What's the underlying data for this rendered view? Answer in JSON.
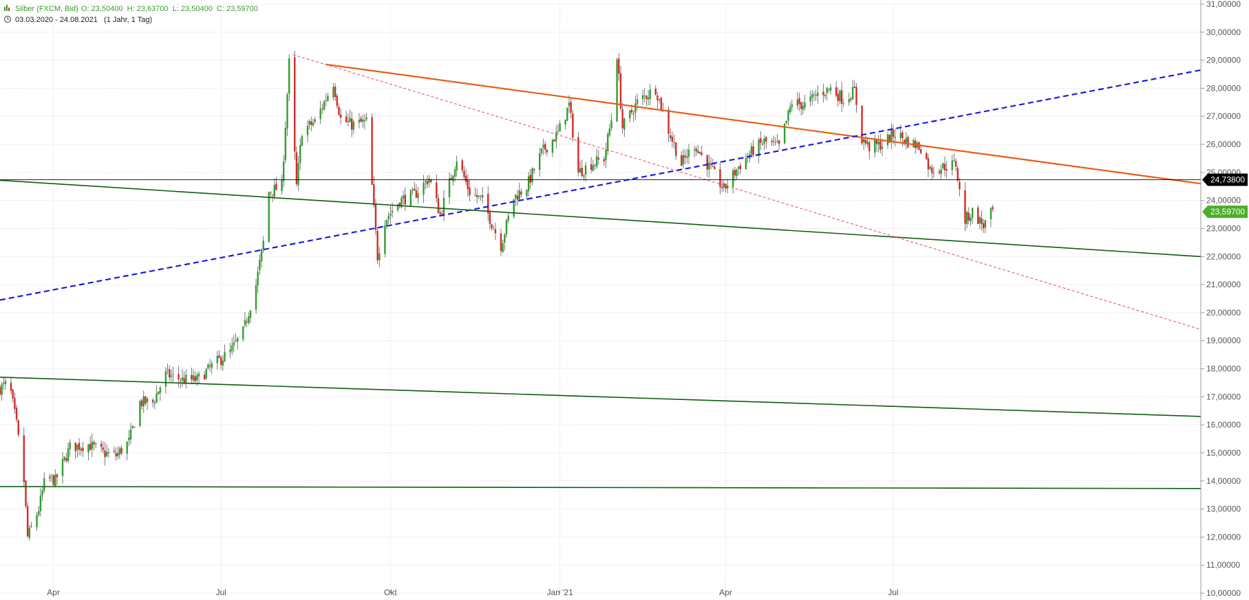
{
  "header": {
    "instrument": "Silber (FXCM, Bid)",
    "ohlc": "O: 23,50400  H: 23,63700  L: 23,50400  C: 23,59700",
    "range": "03.03.2020 - 24.08.2021   (1 Jahr, 1 Tag)",
    "icons": [
      "bar-chart-icon",
      "clock-icon"
    ]
  },
  "colors": {
    "up": "#2e9e2e",
    "down": "#d62828",
    "grid": "#e3e3e3",
    "orange_line": "#e85d12",
    "blue_line": "#1a1ae0",
    "green_line": "#0d5c0d",
    "pink_line": "#f0506e",
    "label_black": "#000000",
    "label_green": "#4caf2a"
  },
  "chart_data": {
    "type": "candlestick",
    "title": "Silber (FXCM, Bid)",
    "ylim": [
      10,
      31
    ],
    "y_ticks": [
      "10,00000",
      "11,00000",
      "12,00000",
      "13,00000",
      "14,00000",
      "15,00000",
      "16,00000",
      "17,00000",
      "18,00000",
      "19,00000",
      "20,00000",
      "21,00000",
      "22,00000",
      "23,00000",
      "24,00000",
      "25,00000",
      "26,00000",
      "27,00000",
      "28,00000",
      "29,00000",
      "30,00000",
      "31,00000"
    ],
    "x_range": [
      "2020-03-03",
      "2021-12-15"
    ],
    "x_ticks": [
      {
        "date": "2020-04-01",
        "label": "Apr"
      },
      {
        "date": "2020-07-01",
        "label": "Jul"
      },
      {
        "date": "2020-10-01",
        "label": "Okt"
      },
      {
        "date": "2021-01-01",
        "label": "Jan '21"
      },
      {
        "date": "2021-04-01",
        "label": "Apr"
      },
      {
        "date": "2021-07-01",
        "label": "Jul"
      }
    ],
    "close_path": [
      [
        "2020-03-03",
        17.3
      ],
      [
        "2020-03-08",
        17.5
      ],
      [
        "2020-03-12",
        16.0
      ],
      [
        "2020-03-16",
        14.0
      ],
      [
        "2020-03-18",
        12.0
      ],
      [
        "2020-03-20",
        12.3
      ],
      [
        "2020-03-24",
        13.0
      ],
      [
        "2020-03-28",
        14.2
      ],
      [
        "2020-04-02",
        14.0
      ],
      [
        "2020-04-10",
        15.2
      ],
      [
        "2020-04-20",
        15.3
      ],
      [
        "2020-04-28",
        15.0
      ],
      [
        "2020-05-05",
        14.9
      ],
      [
        "2020-05-12",
        15.4
      ],
      [
        "2020-05-18",
        16.8
      ],
      [
        "2020-05-25",
        16.8
      ],
      [
        "2020-06-01",
        17.8
      ],
      [
        "2020-06-10",
        17.6
      ],
      [
        "2020-06-18",
        17.6
      ],
      [
        "2020-06-28",
        18.2
      ],
      [
        "2020-07-06",
        18.6
      ],
      [
        "2020-07-13",
        19.3
      ],
      [
        "2020-07-20",
        21.0
      ],
      [
        "2020-07-24",
        22.5
      ],
      [
        "2020-07-27",
        24.3
      ],
      [
        "2020-08-03",
        24.5
      ],
      [
        "2020-08-07",
        28.9
      ],
      [
        "2020-08-11",
        24.5
      ],
      [
        "2020-08-14",
        26.5
      ],
      [
        "2020-08-21",
        26.8
      ],
      [
        "2020-08-31",
        28.2
      ],
      [
        "2020-09-04",
        26.9
      ],
      [
        "2020-09-10",
        26.7
      ],
      [
        "2020-09-18",
        26.8
      ],
      [
        "2020-09-21",
        24.5
      ],
      [
        "2020-09-24",
        22.0
      ],
      [
        "2020-09-28",
        23.3
      ],
      [
        "2020-10-06",
        24.0
      ],
      [
        "2020-10-14",
        24.2
      ],
      [
        "2020-10-22",
        24.8
      ],
      [
        "2020-10-28",
        23.5
      ],
      [
        "2020-11-06",
        25.5
      ],
      [
        "2020-11-13",
        24.3
      ],
      [
        "2020-11-20",
        24.0
      ],
      [
        "2020-11-30",
        22.4
      ],
      [
        "2020-12-07",
        24.1
      ],
      [
        "2020-12-14",
        24.5
      ],
      [
        "2020-12-22",
        25.7
      ],
      [
        "2020-12-31",
        26.4
      ],
      [
        "2021-01-06",
        27.4
      ],
      [
        "2021-01-11",
        25.0
      ],
      [
        "2021-01-18",
        25.3
      ],
      [
        "2021-01-25",
        25.5
      ],
      [
        "2021-01-29",
        26.9
      ],
      [
        "2021-02-01",
        29.2
      ],
      [
        "2021-02-04",
        26.6
      ],
      [
        "2021-02-12",
        27.5
      ],
      [
        "2021-02-22",
        28.0
      ],
      [
        "2021-03-01",
        26.5
      ],
      [
        "2021-03-08",
        25.3
      ],
      [
        "2021-03-15",
        26.0
      ],
      [
        "2021-03-22",
        25.3
      ],
      [
        "2021-03-31",
        24.4
      ],
      [
        "2021-04-08",
        25.2
      ],
      [
        "2021-04-16",
        25.8
      ],
      [
        "2021-04-22",
        26.1
      ],
      [
        "2021-04-30",
        25.9
      ],
      [
        "2021-05-07",
        27.5
      ],
      [
        "2021-05-14",
        27.4
      ],
      [
        "2021-05-21",
        27.8
      ],
      [
        "2021-05-28",
        28.0
      ],
      [
        "2021-06-04",
        27.6
      ],
      [
        "2021-06-10",
        27.9
      ],
      [
        "2021-06-14",
        26.2
      ],
      [
        "2021-06-18",
        25.9
      ],
      [
        "2021-06-25",
        26.0
      ],
      [
        "2021-07-02",
        26.4
      ],
      [
        "2021-07-09",
        26.1
      ],
      [
        "2021-07-16",
        25.9
      ],
      [
        "2021-07-21",
        25.1
      ],
      [
        "2021-07-28",
        25.2
      ],
      [
        "2021-08-04",
        25.3
      ],
      [
        "2021-08-06",
        24.3
      ],
      [
        "2021-08-09",
        23.3
      ],
      [
        "2021-08-13",
        23.6
      ],
      [
        "2021-08-19",
        23.1
      ],
      [
        "2021-08-24",
        23.6
      ]
    ],
    "trendlines": [
      {
        "color": "orange_line",
        "style": "solid",
        "width": 2.2,
        "from": [
          "2020-08-27",
          28.85
        ],
        "to": [
          "2021-12-15",
          24.6
        ]
      },
      {
        "color": "blue_line",
        "style": "dashed",
        "width": 2.2,
        "from": [
          "2020-03-03",
          20.45
        ],
        "to": [
          "2021-12-15",
          28.65
        ]
      },
      {
        "color": "green_line",
        "style": "solid",
        "width": 1.6,
        "from": [
          "2020-03-03",
          24.72
        ],
        "to": [
          "2021-12-15",
          22.0
        ]
      },
      {
        "color": "green_line",
        "style": "solid",
        "width": 1.6,
        "from": [
          "2020-03-03",
          17.7
        ],
        "to": [
          "2021-12-15",
          16.3
        ]
      },
      {
        "color": "green_line",
        "style": "solid",
        "width": 1.6,
        "from": [
          "2020-03-03",
          13.8
        ],
        "to": [
          "2021-12-15",
          13.73
        ]
      },
      {
        "color": "pink_line",
        "style": "dashed",
        "width": 1.1,
        "from": [
          "2020-08-09",
          29.2
        ],
        "to": [
          "2021-12-15",
          19.4
        ]
      },
      {
        "color": "label_black",
        "style": "solid",
        "width": 0.9,
        "from": [
          "2020-03-03",
          24.738
        ],
        "to": [
          "2021-12-15",
          24.738
        ]
      }
    ],
    "price_labels": [
      {
        "value": 24.738,
        "text": "24,73800",
        "color": "label_black"
      },
      {
        "value": 23.597,
        "text": "23,59700",
        "color": "label_green"
      }
    ]
  }
}
